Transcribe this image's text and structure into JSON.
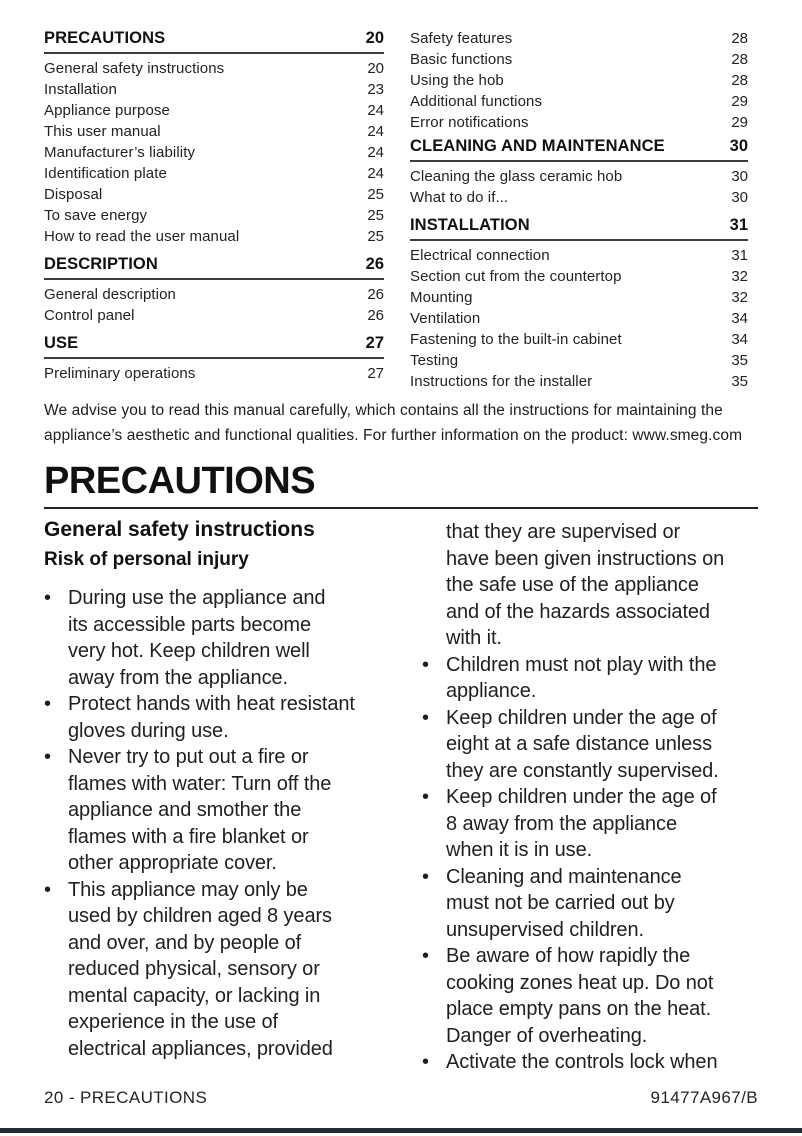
{
  "colors": {
    "background": "#ffffff",
    "text": "#1c1c1c",
    "rule_gray": "#3e3e3e",
    "bottom_bar": "#262b33"
  },
  "bullet_char": "•",
  "toc": {
    "left": [
      {
        "type": "section",
        "label": "PRECAUTIONS",
        "page": "20"
      },
      {
        "type": "entry",
        "label": "General safety instructions",
        "page": "20"
      },
      {
        "type": "entry",
        "label": "Installation",
        "page": "23"
      },
      {
        "type": "entry",
        "label": "Appliance purpose",
        "page": "24"
      },
      {
        "type": "entry",
        "label": "This user manual",
        "page": "24"
      },
      {
        "type": "entry",
        "label": "Manufacturer’s liability",
        "page": "24"
      },
      {
        "type": "entry",
        "label": "Identification plate",
        "page": "24"
      },
      {
        "type": "entry",
        "label": "Disposal",
        "page": "25"
      },
      {
        "type": "entry",
        "label": "To save energy",
        "page": "25"
      },
      {
        "type": "entry",
        "label": "How to read the user manual",
        "page": "25"
      },
      {
        "type": "section",
        "label": "DESCRIPTION",
        "page": "26"
      },
      {
        "type": "entry",
        "label": "General description",
        "page": "26"
      },
      {
        "type": "entry",
        "label": "Control panel",
        "page": "26"
      },
      {
        "type": "section",
        "label": "USE",
        "page": "27"
      },
      {
        "type": "entry",
        "label": "Preliminary operations",
        "page": "27"
      }
    ],
    "right": [
      {
        "type": "entry",
        "label": "Safety features",
        "page": "28"
      },
      {
        "type": "entry",
        "label": "Basic functions",
        "page": "28"
      },
      {
        "type": "entry",
        "label": "Using the hob",
        "page": "28"
      },
      {
        "type": "entry",
        "label": "Additional functions",
        "page": "29"
      },
      {
        "type": "entry",
        "label": "Error notifications",
        "page": "29"
      },
      {
        "type": "section",
        "label": "CLEANING AND MAINTENANCE",
        "page": "30"
      },
      {
        "type": "entry",
        "label": "Cleaning the glass ceramic hob",
        "page": "30"
      },
      {
        "type": "entry",
        "label": "What to do if...",
        "page": "30"
      },
      {
        "type": "section",
        "label": "INSTALLATION",
        "page": "31"
      },
      {
        "type": "entry",
        "label": "Electrical connection",
        "page": "31"
      },
      {
        "type": "entry",
        "label": "Section cut from the countertop",
        "page": "32"
      },
      {
        "type": "entry",
        "label": "Mounting",
        "page": "32"
      },
      {
        "type": "entry",
        "label": "Ventilation",
        "page": "34"
      },
      {
        "type": "entry",
        "label": "Fastening to the built-in cabinet",
        "page": "34"
      },
      {
        "type": "entry",
        "label": "Testing",
        "page": "35"
      },
      {
        "type": "entry",
        "label": "Instructions for the installer",
        "page": "35"
      }
    ]
  },
  "intro": "We advise you to read this manual carefully, which contains all the instructions for maintaining the\nappliance’s aesthetic and functional qualities. For further information on the product: www.smeg.com",
  "chapter": {
    "title": "PRECAUTIONS"
  },
  "content": {
    "heading": "General safety instructions",
    "subheading": "Risk of personal injury",
    "left_bullets": [
      "During use the appliance and\nits accessible parts become\nvery hot. Keep children well\naway from the appliance.",
      "Protect hands with heat resistant\ngloves during use.",
      "Never try to put out a fire or\nflames with water: Turn off the\nappliance and smother the\nflames with a fire blanket or\nother appropriate cover.",
      "This appliance may only be\nused by children aged 8 years\nand over, and by people of\nreduced physical, sensory or\nmental capacity, or lacking in\nexperience in the use of\nelectrical appliances, provided"
    ],
    "right_continuation": "that they are supervised or\nhave been given instructions on\nthe safe use of the appliance\nand of the hazards associated\nwith it.",
    "right_bullets": [
      "Children must not play with the\nappliance.",
      "Keep children under the age of\neight at a safe distance unless\nthey are constantly supervised.",
      "Keep children under the age of\n8 away from the appliance\nwhen it is in use.",
      "Cleaning and maintenance\nmust not be carried out by\nunsupervised children.",
      "Be aware of how rapidly the\ncooking zones heat up. Do not\nplace empty pans on the heat.\nDanger of overheating.",
      "Activate the controls lock when"
    ]
  },
  "footer": {
    "page_label": "20 - PRECAUTIONS",
    "doc_code": "91477A967/B"
  }
}
